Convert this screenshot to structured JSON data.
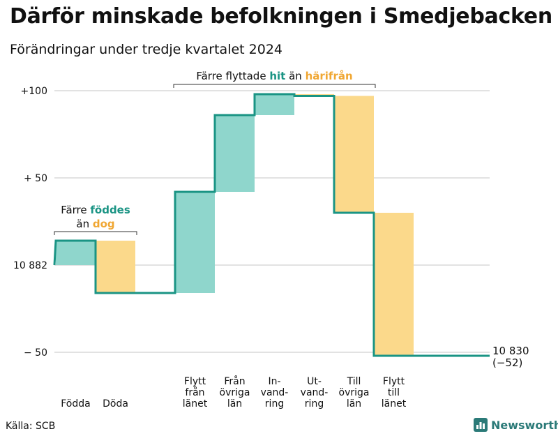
{
  "title": "Därför minskade befolkningen i Smedjebacken",
  "subtitle": "Förändringar under tredje kvartalet 2024",
  "source": "Källa: SCB",
  "brand": "Newsworthy",
  "colors": {
    "inflow": "#8fd6cc",
    "outflow": "#fbd98b",
    "line": "#1a9484",
    "inflow_text": "#1a9484",
    "outflow_text": "#f0a733",
    "grid": "#d9d9d9",
    "brand": "#2b7a78"
  },
  "chart_data": {
    "type": "waterfall",
    "start_value": 10882,
    "end_value": 10830,
    "ylim": [
      -52,
      100
    ],
    "yticks": [
      {
        "value": 100,
        "label": "+100"
      },
      {
        "value": 50,
        "label": "+ 50"
      },
      {
        "value": 0,
        "label": "10 882"
      },
      {
        "value": -50,
        "label": "− 50"
      }
    ],
    "steps": [
      {
        "label": [
          "Födda"
        ],
        "value": 14,
        "kind": "inflow"
      },
      {
        "label": [
          "Döda"
        ],
        "value": -30,
        "kind": "outflow"
      },
      {
        "label": [],
        "value": 0,
        "kind": "none"
      },
      {
        "label": [
          "Flytt",
          "från",
          "länet"
        ],
        "value": 58,
        "kind": "inflow"
      },
      {
        "label": [
          "Från",
          "övriga",
          "län"
        ],
        "value": 44,
        "kind": "inflow"
      },
      {
        "label": [
          "In-",
          "vand-",
          "ring"
        ],
        "value": 12,
        "kind": "inflow"
      },
      {
        "label": [
          "Ut-",
          "vand-",
          "ring"
        ],
        "value": -1,
        "kind": "outflow"
      },
      {
        "label": [
          "Till",
          "övriga",
          "län"
        ],
        "value": -67,
        "kind": "outflow"
      },
      {
        "label": [
          "Flytt",
          "till",
          "länet"
        ],
        "value": -82,
        "kind": "outflow"
      }
    ],
    "end_label": [
      "10 830",
      "(−52)"
    ],
    "annotations": [
      {
        "group": [
          0,
          1
        ],
        "text_parts": [
          [
            "Färre ",
            "plain"
          ],
          [
            "föddes",
            "inflow"
          ]
        ],
        "text_parts2": [
          [
            "än ",
            "plain"
          ],
          [
            "dog",
            "outflow"
          ]
        ]
      },
      {
        "group": [
          3,
          7
        ],
        "text_parts": [
          [
            "Färre flyttade ",
            "plain"
          ],
          [
            "hit",
            "inflow"
          ],
          [
            " än ",
            "plain"
          ],
          [
            "härifrån",
            "outflow"
          ]
        ]
      }
    ]
  }
}
